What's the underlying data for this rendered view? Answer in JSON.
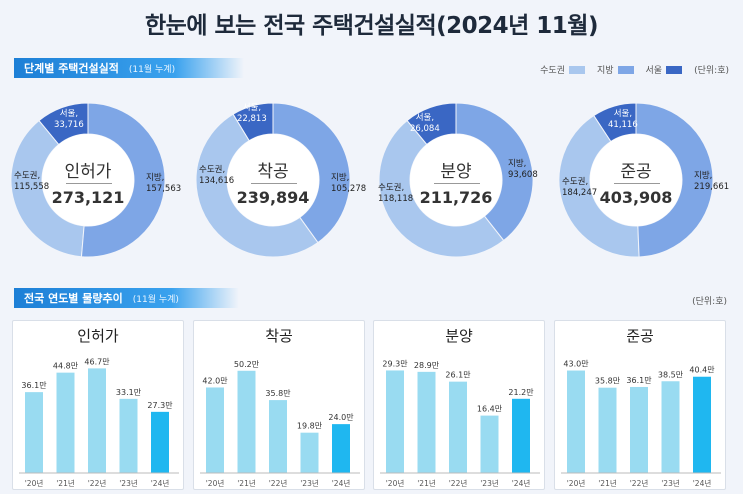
{
  "title": "한눈에 보는 전국 주택건설실적(2024년 11월)",
  "section1": {
    "label": "단계별 주택건설실적",
    "sub": "(11월 누계)"
  },
  "legend": {
    "items": [
      {
        "label": "수도권",
        "color": "#a9c7ee"
      },
      {
        "label": "지방",
        "color": "#7ea6e6"
      },
      {
        "label": "서울",
        "color": "#3a67c4"
      }
    ],
    "unit": "(단위:호)"
  },
  "section2": {
    "label": "전국 연도별 물량추이",
    "sub": "(11월 누계)",
    "unit": "(단위:호)"
  },
  "colors": {
    "capital": "#a9c7ee",
    "local": "#7ea6e6",
    "seoul": "#3a67c4",
    "bar": "#99dbf1",
    "bar_highlight": "#1fb7f0"
  },
  "donuts": [
    {
      "title": "인허가",
      "total": "273,121",
      "seoul_label": "서울,",
      "seoul_value": "33,716",
      "capital_label": "수도권,",
      "capital_value": "115,558",
      "local_label": "지방,",
      "local_value": "157,563"
    },
    {
      "title": "착공",
      "total": "239,894",
      "seoul_label": "서울,",
      "seoul_value": "22,813",
      "capital_label": "수도권,",
      "capital_value": "134,616",
      "local_label": "지방,",
      "local_value": "105,278"
    },
    {
      "title": "분양",
      "total": "211,726",
      "seoul_label": "서울,",
      "seoul_value": "26,084",
      "capital_label": "수도권,",
      "capital_value": "118,118",
      "local_label": "지방,",
      "local_value": "93,608"
    },
    {
      "title": "준공",
      "total": "403,908",
      "seoul_label": "서울,",
      "seoul_value": "41,116",
      "capital_label": "수도권,",
      "capital_value": "184,247",
      "local_label": "지방,",
      "local_value": "219,661"
    }
  ],
  "chart_data": [
    {
      "type": "pie",
      "title": "인허가",
      "total": 273121,
      "slices": [
        {
          "name": "서울",
          "value": 33716
        },
        {
          "name": "수도권",
          "value": 115558
        },
        {
          "name": "지방",
          "value": 157563
        }
      ]
    },
    {
      "type": "pie",
      "title": "착공",
      "total": 239894,
      "slices": [
        {
          "name": "서울",
          "value": 22813
        },
        {
          "name": "수도권",
          "value": 134616
        },
        {
          "name": "지방",
          "value": 105278
        }
      ]
    },
    {
      "type": "pie",
      "title": "분양",
      "total": 211726,
      "slices": [
        {
          "name": "서울",
          "value": 26084
        },
        {
          "name": "수도권",
          "value": 118118
        },
        {
          "name": "지방",
          "value": 93608
        }
      ]
    },
    {
      "type": "pie",
      "title": "준공",
      "total": 403908,
      "slices": [
        {
          "name": "서울",
          "value": 41116
        },
        {
          "name": "수도권",
          "value": 184247
        },
        {
          "name": "지방",
          "value": 219661
        }
      ]
    },
    {
      "type": "bar",
      "title": "인허가",
      "categories": [
        "'20년",
        "'21년",
        "'22년",
        "'23년",
        "'24년"
      ],
      "values": [
        36.1,
        44.8,
        46.7,
        33.1,
        27.3
      ],
      "labels": [
        "36.1만",
        "44.8만",
        "46.7만",
        "33.1만",
        "27.3만"
      ],
      "ylim": [
        0,
        50
      ]
    },
    {
      "type": "bar",
      "title": "착공",
      "categories": [
        "'20년",
        "'21년",
        "'22년",
        "'23년",
        "'24년"
      ],
      "values": [
        42.0,
        50.2,
        35.8,
        19.8,
        24.0
      ],
      "labels": [
        "42.0만",
        "50.2만",
        "35.8만",
        "19.8만",
        "24.0만"
      ],
      "ylim": [
        0,
        55
      ]
    },
    {
      "type": "bar",
      "title": "분양",
      "categories": [
        "'20년",
        "'21년",
        "'22년",
        "'23년",
        "'24년"
      ],
      "values": [
        29.3,
        28.9,
        26.1,
        16.4,
        21.2
      ],
      "labels": [
        "29.3만",
        "28.9만",
        "26.1만",
        "16.4만",
        "21.2만"
      ],
      "ylim": [
        0,
        32
      ]
    },
    {
      "type": "bar",
      "title": "준공",
      "categories": [
        "'20년",
        "'21년",
        "'22년",
        "'23년",
        "'24년"
      ],
      "values": [
        43.0,
        35.8,
        36.1,
        38.5,
        40.4
      ],
      "labels": [
        "43.0만",
        "35.8만",
        "36.1만",
        "38.5만",
        "40.4만"
      ],
      "ylim": [
        0,
        47
      ]
    }
  ]
}
